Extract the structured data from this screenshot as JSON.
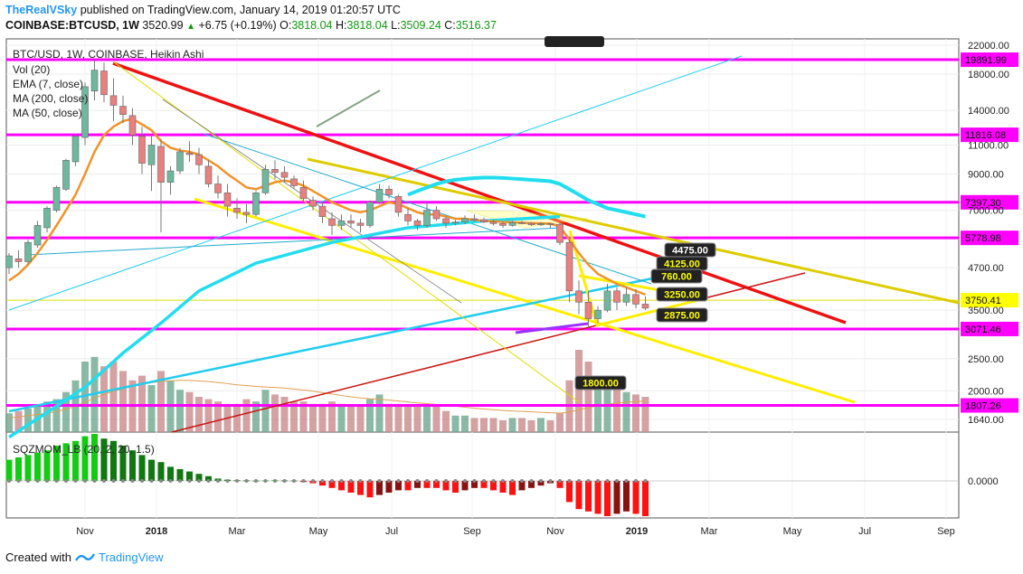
{
  "header": {
    "author": "TheRealVSky",
    "published": "published on TradingView.com, January 14, 2019 01:20:57 UTC"
  },
  "quote": {
    "symbol": "COINBASE:BTCUSD, 1W",
    "last": "3520.99",
    "change": "+6.75 (+0.19%)",
    "o_label": "O:",
    "o": "3818.04",
    "h_label": "H:",
    "h": "3818.04",
    "l_label": "L:",
    "l": "3509.24",
    "c_label": "C:",
    "c": "3516.37"
  },
  "footer": {
    "created_with": "Created with",
    "brand": "TradingView"
  },
  "chart_data": {
    "type": "candlestick",
    "title": "BTC/USD, 1W, COINBASE, Heikin Ashi",
    "indicators": [
      "Vol (20)",
      "EMA (7, close)",
      "MA (200, close)",
      "MA (50, close)"
    ],
    "oscillator_label": "SQZMOM_LB (20, 2, 20, 1.5)",
    "oscillator_zero": "0.0000",
    "y_scale": "log",
    "y_ticks": [
      "22000.00",
      "18000.00",
      "14000.00",
      "11000.00",
      "9000.00",
      "7000.00",
      "4700.00",
      "3500.00",
      "2500.00",
      "2000.00",
      "1640.00"
    ],
    "x_ticks": [
      "Nov",
      "2018",
      "Mar",
      "May",
      "Jul",
      "Sep",
      "Nov",
      "2019",
      "Mar",
      "May",
      "Jul",
      "Sep"
    ],
    "horizontal_levels": [
      {
        "value": 19891.99,
        "label": "19891.99",
        "color": "#ff00ff"
      },
      {
        "value": 11816.08,
        "label": "11816.08",
        "color": "#ff00ff"
      },
      {
        "value": 7397.3,
        "label": "7397.30",
        "color": "#ff00ff"
      },
      {
        "value": 5778.98,
        "label": "5778.98",
        "color": "#ff00ff"
      },
      {
        "value": 3750.41,
        "label": "3750.41",
        "color": "#ffff00"
      },
      {
        "value": 3071.46,
        "label": "3071.46",
        "color": "#ff00ff"
      },
      {
        "value": 1807.26,
        "label": "1807.26",
        "color": "#ff00ff"
      }
    ],
    "price_callouts": [
      "4475.00",
      "4125.00",
      "760.00",
      "3250.00",
      "2875.00",
      "1800.00"
    ],
    "candles": [
      [
        4700,
        5200,
        4500,
        5100
      ],
      [
        5000,
        5300,
        4700,
        4900
      ],
      [
        4900,
        5700,
        4800,
        5600
      ],
      [
        5500,
        6500,
        5400,
        6300
      ],
      [
        6200,
        7200,
        6000,
        7100
      ],
      [
        7000,
        8300,
        6900,
        8200
      ],
      [
        8100,
        10000,
        8000,
        9900
      ],
      [
        9800,
        11900,
        9500,
        11700
      ],
      [
        11600,
        17000,
        11000,
        16500
      ],
      [
        16000,
        19800,
        15000,
        18500
      ],
      [
        18400,
        19500,
        14800,
        15600
      ],
      [
        15500,
        17500,
        13000,
        14500
      ],
      [
        14400,
        15500,
        12800,
        13600
      ],
      [
        13500,
        14200,
        11000,
        11800
      ],
      [
        11700,
        12500,
        9000,
        9700
      ],
      [
        9600,
        11700,
        8000,
        11000
      ],
      [
        10900,
        11500,
        6000,
        8500
      ],
      [
        8500,
        9500,
        7800,
        9200
      ],
      [
        9200,
        10800,
        9000,
        10500
      ],
      [
        10400,
        11300,
        9800,
        10300
      ],
      [
        10300,
        10800,
        9000,
        9600
      ],
      [
        9500,
        9900,
        8200,
        8400
      ],
      [
        8400,
        8900,
        7600,
        7900
      ],
      [
        7900,
        8400,
        6700,
        7200
      ],
      [
        7100,
        7600,
        6600,
        6900
      ],
      [
        6900,
        7300,
        6400,
        6800
      ],
      [
        6800,
        8000,
        6700,
        7900
      ],
      [
        7900,
        9600,
        7800,
        9300
      ],
      [
        9300,
        9900,
        8700,
        9100
      ],
      [
        9100,
        9500,
        8500,
        8800
      ],
      [
        8700,
        8900,
        8100,
        8300
      ],
      [
        8200,
        8600,
        7400,
        7600
      ],
      [
        7500,
        7700,
        7000,
        7200
      ],
      [
        7200,
        7400,
        6400,
        6700
      ],
      [
        6600,
        6900,
        5900,
        6300
      ],
      [
        6300,
        6800,
        6100,
        6500
      ],
      [
        6500,
        6800,
        6200,
        6400
      ],
      [
        6400,
        6600,
        6000,
        6300
      ],
      [
        6300,
        7500,
        6200,
        7400
      ],
      [
        7400,
        8400,
        7300,
        8100
      ],
      [
        8100,
        8300,
        7600,
        7800
      ],
      [
        7700,
        7800,
        6700,
        6900
      ],
      [
        6800,
        7100,
        6300,
        6500
      ],
      [
        6500,
        6600,
        6100,
        6300
      ],
      [
        6300,
        7400,
        6200,
        7000
      ],
      [
        7000,
        7200,
        6500,
        6600
      ],
      [
        6600,
        6700,
        6200,
        6400
      ],
      [
        6400,
        6550,
        6300,
        6450
      ],
      [
        6450,
        6750,
        6350,
        6600
      ],
      [
        6600,
        6800,
        6500,
        6550
      ],
      [
        6550,
        6650,
        6400,
        6450
      ],
      [
        6450,
        6550,
        6300,
        6380
      ],
      [
        6380,
        6450,
        6200,
        6300
      ],
      [
        6300,
        6500,
        6250,
        6420
      ],
      [
        6420,
        6500,
        6350,
        6400
      ],
      [
        6400,
        6450,
        6280,
        6330
      ],
      [
        6330,
        6450,
        6280,
        6380
      ],
      [
        6380,
        6400,
        6200,
        6350
      ],
      [
        6350,
        6400,
        5500,
        5600
      ],
      [
        5600,
        5700,
        3700,
        4000
      ],
      [
        4000,
        4300,
        3400,
        3700
      ],
      [
        3700,
        4000,
        3100,
        3300
      ],
      [
        3300,
        3600,
        3200,
        3500
      ],
      [
        3500,
        4200,
        3450,
        4000
      ],
      [
        4000,
        4100,
        3500,
        3700
      ],
      [
        3700,
        4100,
        3600,
        3900
      ],
      [
        3900,
        4050,
        3550,
        3650
      ],
      [
        3650,
        3850,
        3500,
        3550
      ]
    ],
    "volume": [
      8,
      9,
      10,
      11,
      13,
      14,
      17,
      22,
      30,
      32,
      28,
      30,
      26,
      22,
      24,
      20,
      26,
      22,
      18,
      17,
      15,
      14,
      13,
      12,
      12,
      14,
      13,
      18,
      16,
      15,
      13,
      13,
      12,
      12,
      13,
      12,
      11,
      11,
      14,
      16,
      12,
      12,
      11,
      11,
      12,
      11,
      9,
      7,
      7,
      6,
      6,
      6,
      5,
      6,
      6,
      5,
      6,
      5,
      8,
      22,
      35,
      30,
      24,
      20,
      18,
      17,
      16,
      15
    ],
    "vol_ma": [
      6,
      6.5,
      7,
      7.5,
      8,
      8.8,
      9.7,
      11,
      12.7,
      14.5,
      16,
      17.4,
      18.5,
      19.4,
      20.3,
      21,
      21.6,
      21.8,
      22,
      22,
      21.8,
      21.5,
      21.1,
      20.6,
      20.1,
      19.8,
      19.4,
      19.2,
      19,
      18.7,
      18.3,
      17.9,
      17.4,
      16.8,
      16.2,
      15.6,
      15,
      14.5,
      14.2,
      14,
      13.6,
      13.2,
      12.8,
      12.4,
      12.1,
      11.8,
      11.4,
      11,
      10.6,
      10.2,
      9.8,
      9.5,
      9.2,
      9,
      8.8,
      8.6,
      8.4,
      8.2,
      8.1,
      8.5,
      9.5,
      10.4,
      11.2,
      11.8,
      12.3,
      12.7,
      13,
      13.2
    ],
    "ema7": [
      4300,
      4500,
      4800,
      5200,
      5700,
      6300,
      7000,
      7800,
      9000,
      10500,
      11800,
      12500,
      13000,
      13200,
      12700,
      12200,
      11300,
      10800,
      10600,
      10500,
      10300,
      9900,
      9500,
      9000,
      8600,
      8200,
      8100,
      8300,
      8500,
      8600,
      8500,
      8300,
      8000,
      7700,
      7400,
      7200,
      7000,
      6900,
      7000,
      7200,
      7400,
      7300,
      7100,
      6900,
      6800,
      6800,
      6700,
      6600,
      6600,
      6550,
      6500,
      6480,
      6450,
      6440,
      6420,
      6400,
      6390,
      6380,
      6250,
      5700,
      5200,
      4800,
      4500,
      4350,
      4200,
      4100,
      4000,
      3900
    ],
    "ma50": [
      null,
      null,
      null,
      null,
      null,
      null,
      null,
      null,
      null,
      null,
      null,
      null,
      null,
      null,
      null,
      null,
      null,
      null,
      null,
      null,
      null,
      null,
      null,
      null,
      null,
      null,
      null,
      null,
      null,
      null,
      null,
      null,
      null,
      null,
      null,
      null,
      null,
      null,
      null,
      null,
      null,
      null,
      7800,
      8000,
      8200,
      8400,
      8550,
      8650,
      8700,
      8750,
      8780,
      8780,
      8760,
      8720,
      8680,
      8640,
      8600,
      8560,
      8400,
      8100,
      7800,
      7500,
      7300,
      7100,
      7000,
      6900,
      6800,
      6700
    ],
    "ma200": [
      {
        "i": 0,
        "v": 1450
      },
      {
        "i": 4,
        "v": 1720
      },
      {
        "i": 8,
        "v": 2050
      },
      {
        "i": 12,
        "v": 2600
      },
      {
        "i": 16,
        "v": 3200
      },
      {
        "i": 20,
        "v": 4000
      },
      {
        "i": 26,
        "v": 4850
      },
      {
        "i": 34,
        "v": 5600
      },
      {
        "i": 42,
        "v": 6200
      },
      {
        "i": 50,
        "v": 6500
      },
      {
        "i": 58,
        "v": 6700
      }
    ],
    "squeeze_momentum": [
      9,
      10,
      11,
      12,
      13,
      15,
      16,
      17,
      19,
      20,
      18,
      17,
      15,
      13,
      11,
      9,
      8,
      6,
      5,
      4,
      3,
      2,
      1,
      0.5,
      0.3,
      0.2,
      0.1,
      0.2,
      0.3,
      0.2,
      0.1,
      -0.5,
      -1,
      -2,
      -3,
      -4,
      -5,
      -6,
      -7,
      -6,
      -5,
      -4,
      -4,
      -3,
      -3,
      -3,
      -4,
      -5,
      -4,
      -3,
      -3,
      -4,
      -5,
      -6,
      -4,
      -3,
      -2,
      -1,
      -3,
      -9,
      -12,
      -13,
      -14,
      -15,
      -14,
      -13,
      -14,
      -15
    ]
  }
}
